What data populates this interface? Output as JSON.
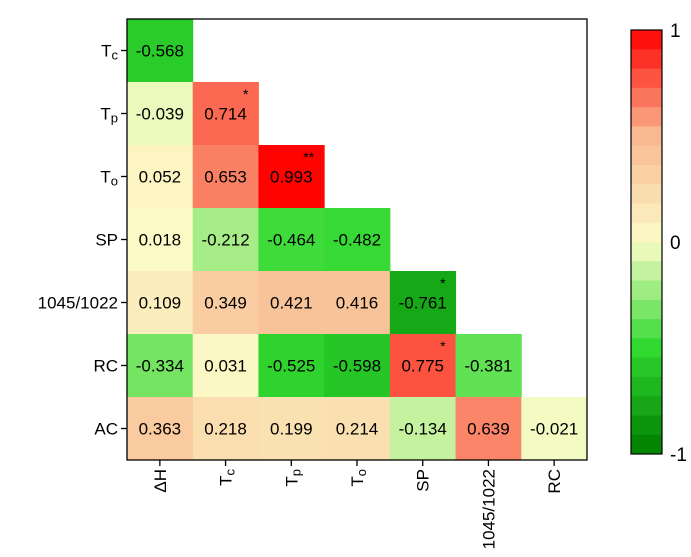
{
  "chart_data": {
    "type": "heatmap",
    "title": "",
    "xlabel": "",
    "ylabel": "",
    "row_labels": [
      {
        "main": "T",
        "sub": "c"
      },
      {
        "main": "T",
        "sub": "p"
      },
      {
        "main": "T",
        "sub": "o"
      },
      {
        "main": "SP",
        "sub": ""
      },
      {
        "main": "1045/1022",
        "sub": ""
      },
      {
        "main": "RC",
        "sub": ""
      },
      {
        "main": "AC",
        "sub": ""
      }
    ],
    "col_labels": [
      {
        "main": "ΔH",
        "sub": ""
      },
      {
        "main": "T",
        "sub": "c"
      },
      {
        "main": "T",
        "sub": "p"
      },
      {
        "main": "T",
        "sub": "o"
      },
      {
        "main": "SP",
        "sub": ""
      },
      {
        "main": "1045/1022",
        "sub": ""
      },
      {
        "main": "RC",
        "sub": ""
      }
    ],
    "cells": [
      [
        {
          "v": -0.568,
          "label": "-0.568",
          "sig": ""
        }
      ],
      [
        {
          "v": -0.039,
          "label": "-0.039",
          "sig": ""
        },
        {
          "v": 0.714,
          "label": "0.714",
          "sig": "*"
        }
      ],
      [
        {
          "v": 0.052,
          "label": "0.052",
          "sig": ""
        },
        {
          "v": 0.653,
          "label": "0.653",
          "sig": ""
        },
        {
          "v": 0.993,
          "label": "0.993",
          "sig": "**"
        }
      ],
      [
        {
          "v": 0.018,
          "label": "0.018",
          "sig": ""
        },
        {
          "v": -0.212,
          "label": "-0.212",
          "sig": ""
        },
        {
          "v": -0.464,
          "label": "-0.464",
          "sig": ""
        },
        {
          "v": -0.482,
          "label": "-0.482",
          "sig": ""
        }
      ],
      [
        {
          "v": 0.109,
          "label": "0.109",
          "sig": ""
        },
        {
          "v": 0.349,
          "label": "0.349",
          "sig": ""
        },
        {
          "v": 0.421,
          "label": "0.421",
          "sig": ""
        },
        {
          "v": 0.416,
          "label": "0.416",
          "sig": ""
        },
        {
          "v": -0.761,
          "label": "-0.761",
          "sig": "*"
        }
      ],
      [
        {
          "v": -0.334,
          "label": "-0.334",
          "sig": ""
        },
        {
          "v": 0.031,
          "label": "0.031",
          "sig": ""
        },
        {
          "v": -0.525,
          "label": "-0.525",
          "sig": ""
        },
        {
          "v": -0.598,
          "label": "-0.598",
          "sig": ""
        },
        {
          "v": 0.775,
          "label": "0.775",
          "sig": "*"
        },
        {
          "v": -0.381,
          "label": "-0.381",
          "sig": ""
        }
      ],
      [
        {
          "v": 0.363,
          "label": "0.363",
          "sig": ""
        },
        {
          "v": 0.218,
          "label": "0.218",
          "sig": ""
        },
        {
          "v": 0.199,
          "label": "0.199",
          "sig": ""
        },
        {
          "v": 0.214,
          "label": "0.214",
          "sig": ""
        },
        {
          "v": -0.134,
          "label": "-0.134",
          "sig": ""
        },
        {
          "v": 0.639,
          "label": "0.639",
          "sig": ""
        },
        {
          "v": -0.021,
          "label": "-0.021",
          "sig": ""
        }
      ]
    ],
    "colorbar": {
      "min": -1,
      "max": 1,
      "ticks": [
        {
          "value": 1,
          "label": "1"
        },
        {
          "value": 0,
          "label": "0"
        },
        {
          "value": -1,
          "label": "-1"
        }
      ],
      "levels": 22
    },
    "colors": {
      "negative_end": "#007d00",
      "negative_mid": "#30d830",
      "neutral": "#fcfcc8",
      "positive_mid": "#f8b890",
      "positive_end": "#ff0000"
    }
  }
}
